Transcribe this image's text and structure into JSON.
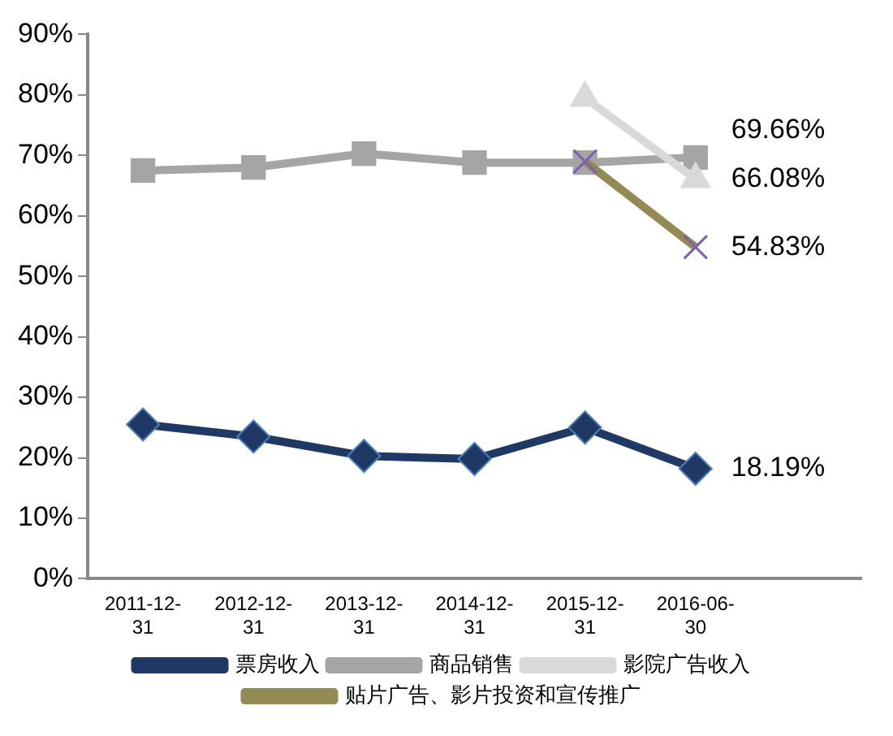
{
  "chart_data": {
    "type": "line",
    "categories": [
      "2011-12-31",
      "2012-12-31",
      "2013-12-31",
      "2014-12-31",
      "2015-12-31",
      "2016-06-30",
      null
    ],
    "ylim": [
      0,
      90
    ],
    "yticks": [
      {
        "value": 0,
        "label": "0%"
      },
      {
        "value": 10,
        "label": "10%"
      },
      {
        "value": 20,
        "label": "20%"
      },
      {
        "value": 30,
        "label": "30%"
      },
      {
        "value": 40,
        "label": "40%"
      },
      {
        "value": 50,
        "label": "50%"
      },
      {
        "value": 60,
        "label": "60%"
      },
      {
        "value": 70,
        "label": "70%"
      },
      {
        "value": 80,
        "label": "80%"
      },
      {
        "value": 90,
        "label": "90%"
      }
    ],
    "grid": false,
    "legend": "bottom",
    "series": [
      {
        "name": "票房收入",
        "color": "#1f3864",
        "marker": "diamond",
        "values": [
          25.5,
          23.5,
          20.3,
          19.8,
          25.0,
          18.19,
          null
        ],
        "value_labels": [
          null,
          null,
          null,
          null,
          null,
          "18.19%",
          null
        ]
      },
      {
        "name": "商品销售",
        "color": "#a5a5a5",
        "marker": "square",
        "values": [
          67.5,
          68.0,
          70.3,
          68.8,
          68.8,
          69.66,
          null
        ],
        "value_labels": [
          null,
          null,
          null,
          null,
          null,
          "69.66%",
          null
        ]
      },
      {
        "name": "影院广告收入",
        "color": "#d9d9d9",
        "marker": "triangle",
        "values": [
          null,
          null,
          null,
          null,
          79.5,
          66.08,
          null
        ],
        "value_labels": [
          null,
          null,
          null,
          null,
          null,
          "66.08%",
          null
        ]
      },
      {
        "name": "贴片广告、影片投资和宣传推广",
        "color": "#948a54",
        "marker": "cross",
        "values": [
          null,
          null,
          null,
          null,
          69.0,
          54.83,
          null
        ],
        "value_labels": [
          null,
          null,
          null,
          null,
          null,
          "54.83%",
          null
        ]
      }
    ]
  }
}
